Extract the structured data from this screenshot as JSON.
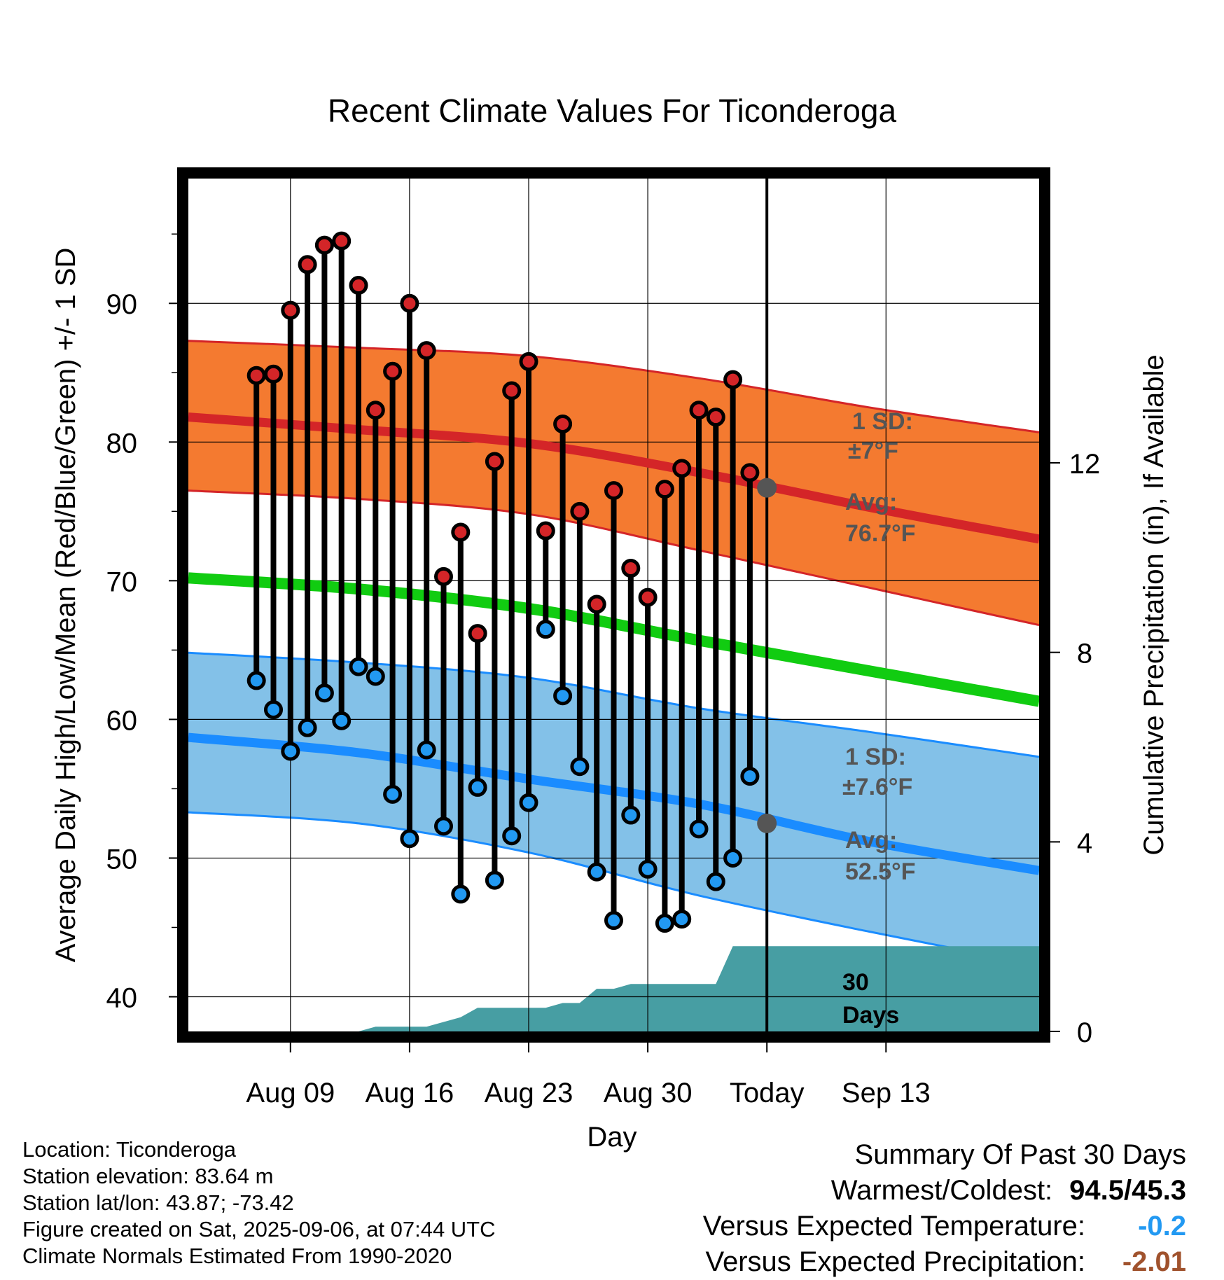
{
  "chart_data": {
    "type": "line",
    "title": "Recent Climate Values For Ticonderoga",
    "xlabel": "Day",
    "ylabel": "Average Daily High/Low/Mean (Red/Blue/Green) +/- 1 SD",
    "y2label": "Cumulative Precipitation (in), If Available",
    "ylim": [
      37.5,
      99
    ],
    "y2lim": [
      0,
      18
    ],
    "yticks": [
      40,
      50,
      60,
      70,
      80,
      90
    ],
    "y2ticks": [
      0,
      4,
      8,
      12
    ],
    "xlim": [
      -34,
      16
    ],
    "xticks": [
      {
        "day": -28,
        "label": "Aug 09"
      },
      {
        "day": -21,
        "label": "Aug 16"
      },
      {
        "day": -14,
        "label": "Aug 23"
      },
      {
        "day": -7,
        "label": "Aug 30"
      },
      {
        "day": 0,
        "label": "Today"
      },
      {
        "day": 7,
        "label": "Sep 13"
      }
    ],
    "grid": true,
    "observed": {
      "days": [
        -30,
        -29,
        -28,
        -27,
        -26,
        -25,
        -24,
        -23,
        -22,
        -21,
        -20,
        -19,
        -18,
        -17,
        -16,
        -15,
        -14,
        -13,
        -12,
        -11,
        -10,
        -9,
        -8,
        -7,
        -6,
        -5,
        -4,
        -3,
        -2,
        -1
      ],
      "highs": [
        84.8,
        84.9,
        89.5,
        92.8,
        94.2,
        94.5,
        91.3,
        82.3,
        85.1,
        90.0,
        86.6,
        70.3,
        73.5,
        66.2,
        78.6,
        83.7,
        85.8,
        73.6,
        81.3,
        75.0,
        68.3,
        76.5,
        70.9,
        68.8,
        76.6,
        78.1,
        82.3,
        81.8,
        84.5,
        77.8
      ],
      "lows": [
        62.8,
        60.7,
        57.7,
        59.4,
        61.9,
        59.9,
        63.8,
        63.1,
        54.6,
        51.4,
        57.8,
        52.3,
        47.4,
        55.1,
        48.4,
        51.6,
        54.0,
        66.5,
        61.7,
        56.6,
        49.0,
        45.5,
        53.1,
        49.2,
        45.3,
        45.6,
        52.1,
        48.3,
        50.0,
        55.9
      ]
    },
    "normals": {
      "days": [
        -34,
        -24,
        -14,
        -4,
        6,
        16
      ],
      "high_avg": [
        81.8,
        80.9,
        79.9,
        77.8,
        75.3,
        73.0
      ],
      "high_sd_upper": [
        87.3,
        86.8,
        86.2,
        84.6,
        82.5,
        80.7
      ],
      "high_sd_lower": [
        76.5,
        75.9,
        74.8,
        72.2,
        69.5,
        66.8
      ],
      "mean": [
        70.2,
        69.4,
        68.0,
        65.7,
        63.5,
        61.3
      ],
      "low_avg": [
        58.7,
        57.6,
        55.7,
        53.9,
        51.2,
        49.1
      ],
      "low_sd_upper": [
        64.8,
        64.1,
        63.0,
        60.8,
        59.1,
        57.3
      ],
      "low_sd_lower": [
        53.3,
        52.5,
        50.4,
        47.3,
        44.7,
        42.3
      ]
    },
    "precip_cumulative": {
      "days": [
        -34,
        -24,
        -23,
        -21,
        -20,
        -19,
        -18,
        -17,
        -16,
        -15,
        -14,
        -13,
        -12,
        -11,
        -10,
        -9,
        -8,
        -7,
        -6,
        -5,
        -4,
        -3,
        -2,
        -1,
        0,
        16
      ],
      "values": [
        0,
        0,
        0.1,
        0.1,
        0.1,
        0.2,
        0.3,
        0.5,
        0.5,
        0.5,
        0.5,
        0.5,
        0.6,
        0.6,
        0.9,
        0.9,
        1.0,
        1.0,
        1.0,
        1.0,
        1.0,
        1.0,
        1.8,
        1.8,
        1.8,
        1.8
      ]
    },
    "today_high_avg": 76.7,
    "today_low_avg": 52.5,
    "annotations": {
      "high_sd_label": "1 SD:",
      "high_sd_value": "±7°F",
      "high_avg_label": "Avg:",
      "high_avg_value": "76.7°F",
      "low_sd_label": "1 SD:",
      "low_sd_value": "±7.6°F",
      "low_avg_label": "Avg:",
      "low_avg_value": "52.5°F",
      "precip_label_1": "30",
      "precip_label_2": "Days"
    },
    "colors": {
      "high_band": "#f47a30",
      "high_line": "#d42528",
      "mean_line": "#11cc11",
      "low_band": "#83c1e8",
      "low_line": "#1a8cff",
      "precip": "#479ea3",
      "high_marker": "#d42528",
      "low_marker": "#2299f2",
      "today_marker": "#555555"
    }
  },
  "info": {
    "location": "Location: Ticonderoga",
    "elevation": "Station elevation: 83.64 m",
    "latlon": "Station lat/lon: 43.87; -73.42",
    "created": "Figure created on Sat, 2025-09-06, at 07:44 UTC",
    "normals": "Climate Normals Estimated From 1990-2020"
  },
  "summary": {
    "title": "Summary Of Past 30 Days",
    "warm_cold_label": "Warmest/Coldest:",
    "warm_cold_value": "94.5/45.3",
    "temp_label": "Versus Expected Temperature:",
    "temp_value": "-0.2",
    "temp_color": "#2299f2",
    "precip_label": "Versus Expected Precipitation:",
    "precip_value": "-2.01",
    "precip_color": "#a0522d"
  }
}
